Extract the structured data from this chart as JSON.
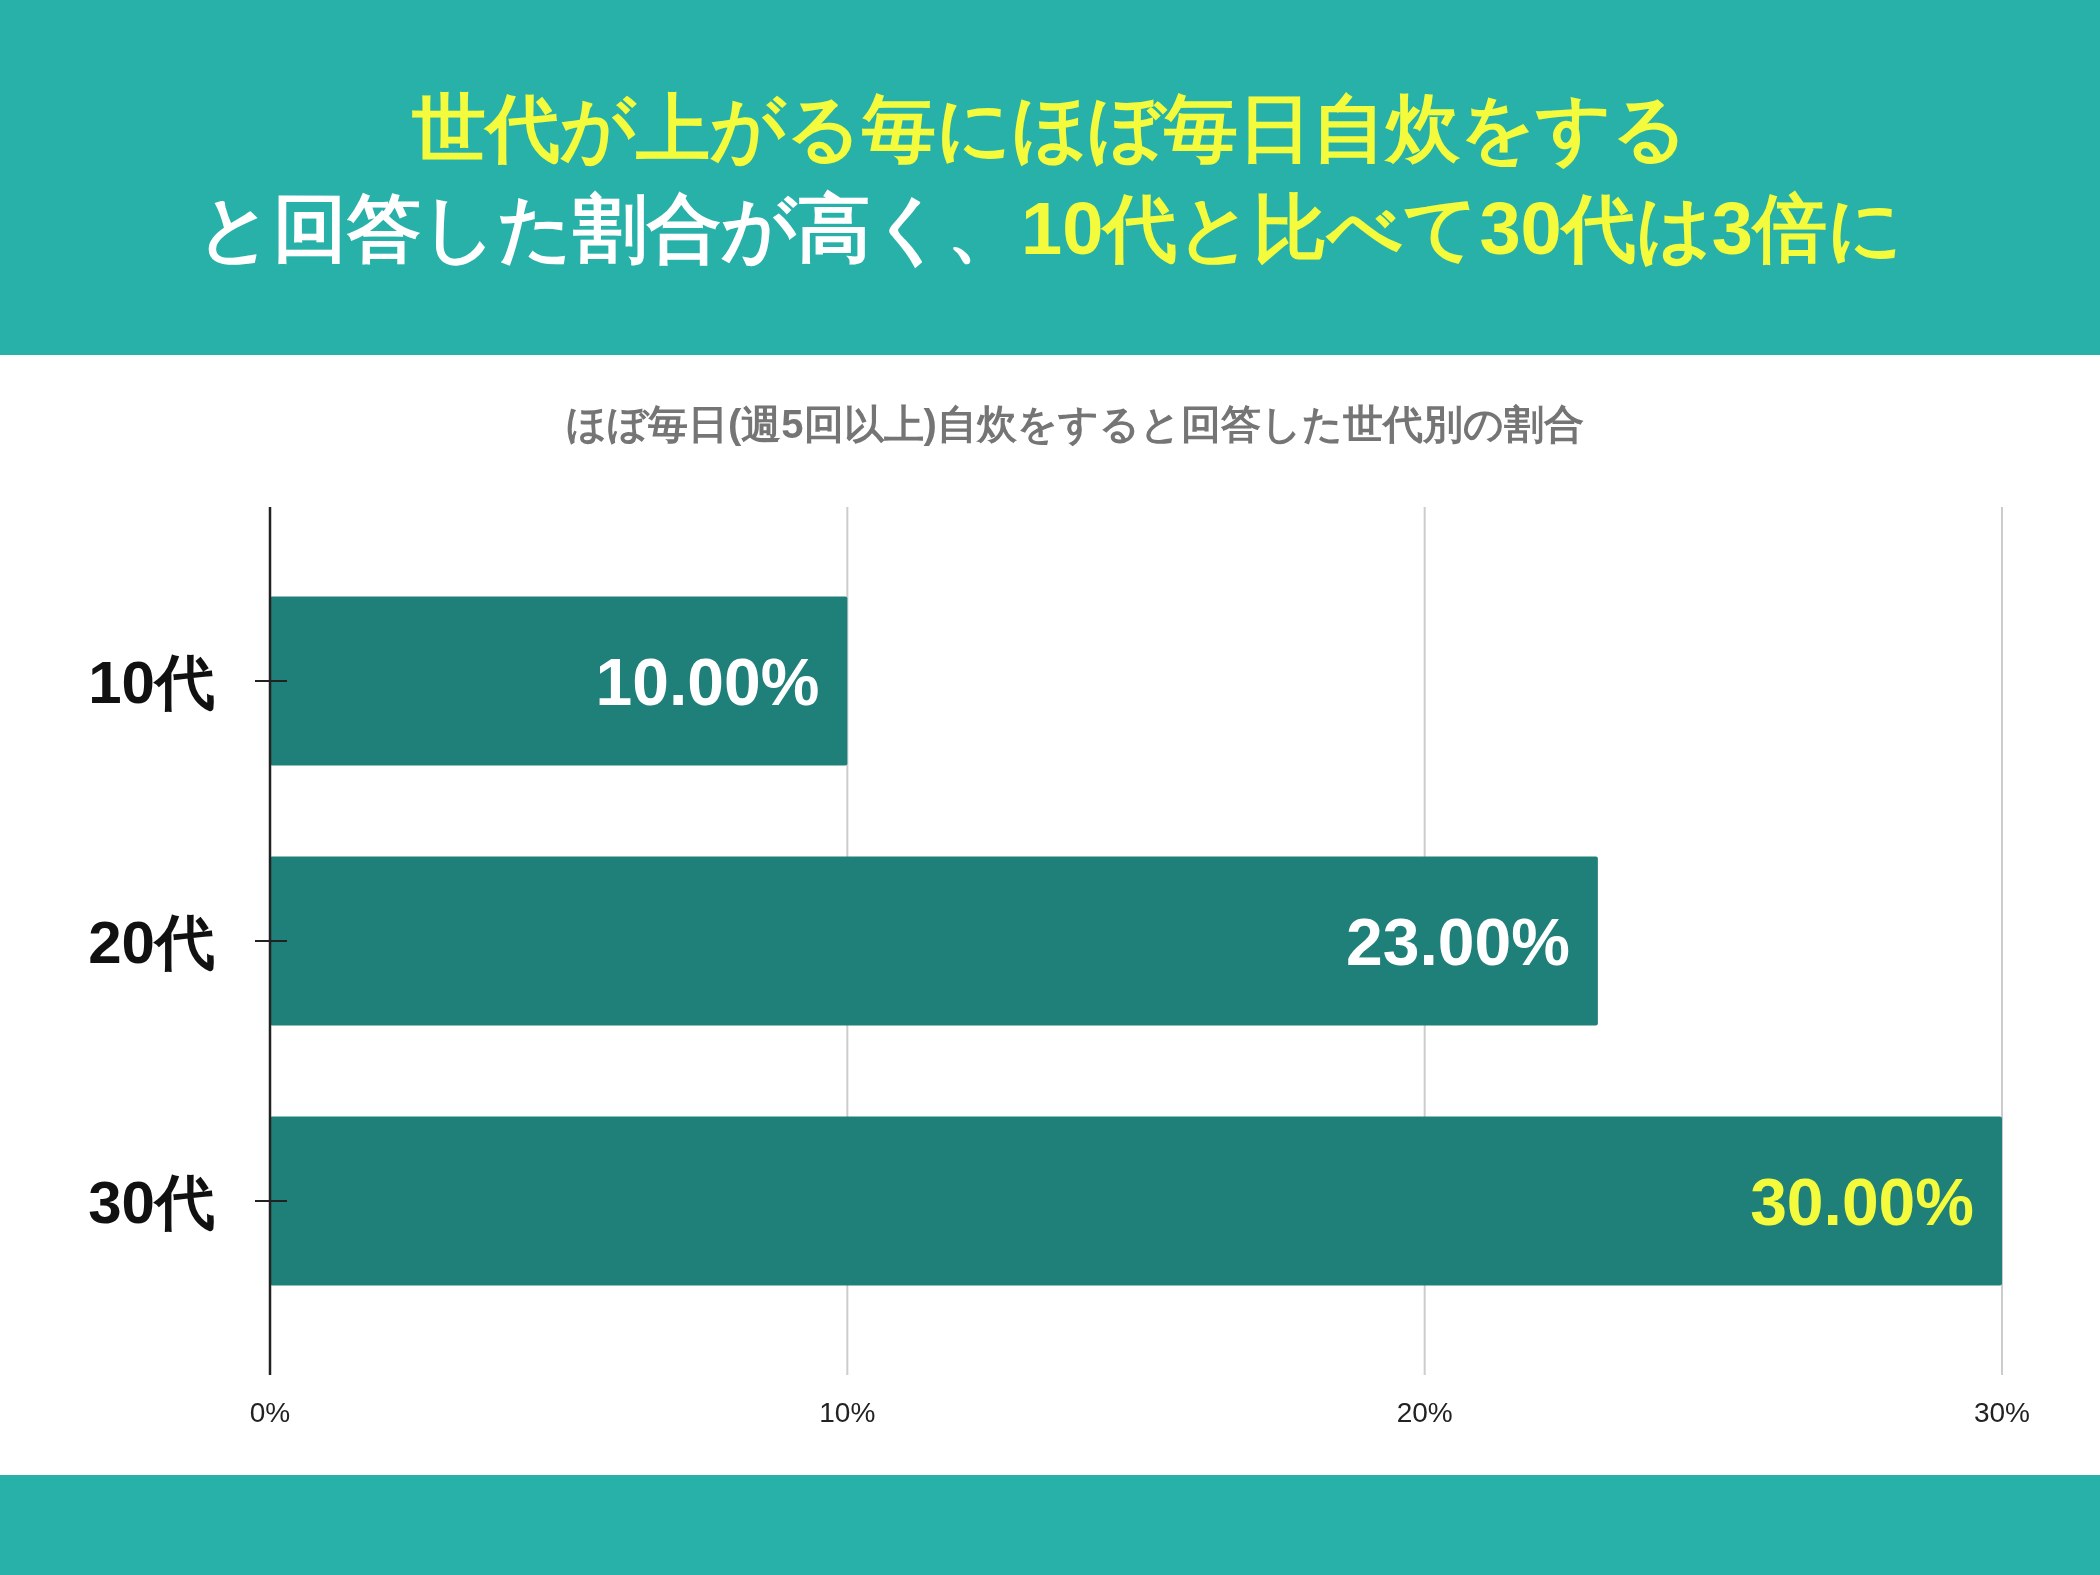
{
  "chart_data": {
    "type": "bar",
    "orientation": "horizontal",
    "title": "**世代が上がる毎にほぼ毎日自炊をする**と回答した割合が高く、**10代と比べて30代は3倍に**",
    "subtitle": "ほぼ毎日(週5回以上)自炊をすると回答した世代別の割合",
    "categories": [
      "10代",
      "20代",
      "30代"
    ],
    "values": [
      10,
      23,
      30
    ],
    "value_labels": [
      "10.00%",
      "23.00%",
      "**30.00%**"
    ],
    "color": "#1e8079",
    "xlim": [
      0,
      30
    ],
    "xticks": [
      {
        "value": 0,
        "label": "0%"
      },
      {
        "value": 10,
        "label": "10%"
      },
      {
        "value": 20,
        "label": "20%"
      },
      {
        "value": 30,
        "label": "30%"
      }
    ],
    "grid": "x"
  }
}
